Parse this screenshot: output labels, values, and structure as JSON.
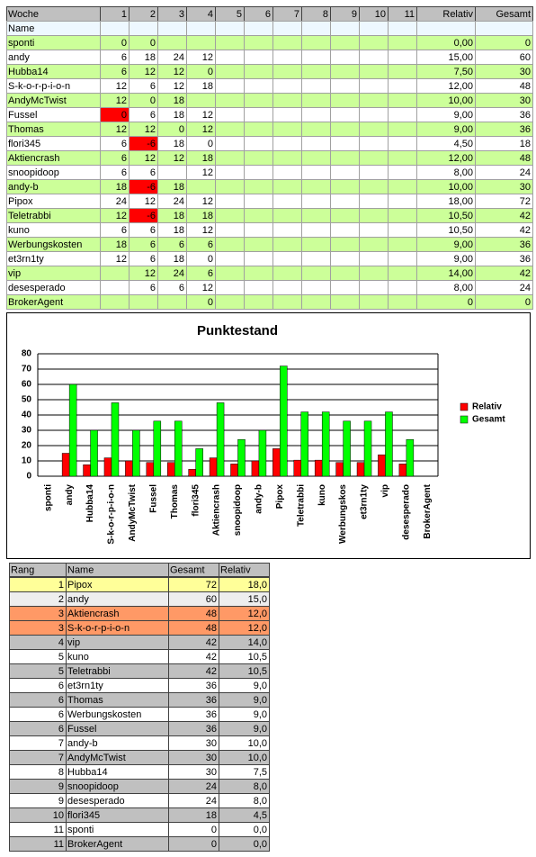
{
  "table": {
    "header": [
      "Woche",
      "1",
      "2",
      "3",
      "4",
      "5",
      "6",
      "7",
      "8",
      "9",
      "10",
      "11",
      "Relativ",
      "Gesamt"
    ],
    "subheader": "Name",
    "rows": [
      {
        "name": "sponti",
        "weeks": [
          0,
          0,
          null,
          null
        ],
        "relativ": "0,00",
        "gesamt": 0
      },
      {
        "name": "andy",
        "weeks": [
          6,
          18,
          24,
          12
        ],
        "relativ": "15,00",
        "gesamt": 60
      },
      {
        "name": "Hubba14",
        "weeks": [
          6,
          12,
          12,
          0
        ],
        "relativ": "7,50",
        "gesamt": 30
      },
      {
        "name": "S-k-o-r-p-i-o-n",
        "weeks": [
          12,
          6,
          12,
          18
        ],
        "relativ": "12,00",
        "gesamt": 48
      },
      {
        "name": "AndyMcTwist",
        "weeks": [
          12,
          0,
          18,
          null
        ],
        "relativ": "10,00",
        "gesamt": 30
      },
      {
        "name": "Fussel",
        "weeks": [
          0,
          6,
          18,
          12
        ],
        "relativ": "9,00",
        "gesamt": 36
      },
      {
        "name": "Thomas",
        "weeks": [
          12,
          12,
          0,
          12
        ],
        "relativ": "9,00",
        "gesamt": 36
      },
      {
        "name": "flori345",
        "weeks": [
          6,
          -6,
          18,
          0
        ],
        "relativ": "4,50",
        "gesamt": 18
      },
      {
        "name": "Aktiencrash",
        "weeks": [
          6,
          12,
          12,
          18
        ],
        "relativ": "12,00",
        "gesamt": 48
      },
      {
        "name": "snoopidoop",
        "weeks": [
          6,
          6,
          null,
          12
        ],
        "relativ": "8,00",
        "gesamt": 24
      },
      {
        "name": "andy-b",
        "weeks": [
          18,
          -6,
          18,
          null
        ],
        "relativ": "10,00",
        "gesamt": 30
      },
      {
        "name": "Pipox",
        "weeks": [
          24,
          12,
          24,
          12
        ],
        "relativ": "18,00",
        "gesamt": 72
      },
      {
        "name": "Teletrabbi",
        "weeks": [
          12,
          -6,
          18,
          18
        ],
        "relativ": "10,50",
        "gesamt": 42
      },
      {
        "name": "kuno",
        "weeks": [
          6,
          6,
          18,
          12
        ],
        "relativ": "10,50",
        "gesamt": 42
      },
      {
        "name": "Werbungskosten",
        "weeks": [
          18,
          6,
          6,
          6
        ],
        "relativ": "9,00",
        "gesamt": 36
      },
      {
        "name": "et3rn1ty",
        "weeks": [
          12,
          6,
          18,
          0
        ],
        "relativ": "9,00",
        "gesamt": 36
      },
      {
        "name": "vip",
        "weeks": [
          null,
          12,
          24,
          6
        ],
        "relativ": "14,00",
        "gesamt": 42
      },
      {
        "name": "desesperado",
        "weeks": [
          null,
          6,
          6,
          12
        ],
        "relativ": "8,00",
        "gesamt": 24
      },
      {
        "name": "BrokerAgent",
        "weeks": [
          null,
          null,
          null,
          0
        ],
        "relativ": "0",
        "gesamt": 0
      }
    ]
  },
  "chart_data": {
    "type": "bar",
    "title": "Punktestand",
    "categories": [
      "sponti",
      "andy",
      "Hubba14",
      "S-k-o-r-p-i-o-n",
      "AndyMcTwist",
      "Fussel",
      "Thomas",
      "flori345",
      "Aktiencrash",
      "snoopidoop",
      "andy-b",
      "Pipox",
      "Teletrabbi",
      "kuno",
      "Werbungskos",
      "et3rn1ty",
      "vip",
      "desesperado",
      "BrokerAgent"
    ],
    "series": [
      {
        "name": "Relativ",
        "color": "#ff0000",
        "values": [
          0,
          15,
          7.5,
          12,
          10,
          9,
          9,
          4.5,
          12,
          8,
          10,
          18,
          10.5,
          10.5,
          9,
          9,
          14,
          8,
          0
        ]
      },
      {
        "name": "Gesamt",
        "color": "#00ff00",
        "values": [
          0,
          60,
          30,
          48,
          30,
          36,
          36,
          18,
          48,
          24,
          30,
          72,
          42,
          42,
          36,
          36,
          42,
          24,
          0
        ]
      }
    ],
    "ylim": [
      0,
      80
    ],
    "yticks": [
      0,
      10,
      20,
      30,
      40,
      50,
      60,
      70,
      80
    ],
    "grid": true,
    "legend": "right"
  },
  "ranking": {
    "header": [
      "Rang",
      "Name",
      "Gesamt",
      "Relativ"
    ],
    "rows": [
      [
        1,
        "Pipox",
        72,
        "18,0"
      ],
      [
        2,
        "andy",
        60,
        "15,0"
      ],
      [
        3,
        "Aktiencrash",
        48,
        "12,0"
      ],
      [
        3,
        "S-k-o-r-p-i-o-n",
        48,
        "12,0"
      ],
      [
        4,
        "vip",
        42,
        "14,0"
      ],
      [
        5,
        "kuno",
        42,
        "10,5"
      ],
      [
        5,
        "Teletrabbi",
        42,
        "10,5"
      ],
      [
        6,
        "et3rn1ty",
        36,
        "9,0"
      ],
      [
        6,
        "Thomas",
        36,
        "9,0"
      ],
      [
        6,
        "Werbungskosten",
        36,
        "9,0"
      ],
      [
        6,
        "Fussel",
        36,
        "9,0"
      ],
      [
        7,
        "andy-b",
        30,
        "10,0"
      ],
      [
        7,
        "AndyMcTwist",
        30,
        "10,0"
      ],
      [
        8,
        "Hubba14",
        30,
        "7,5"
      ],
      [
        9,
        "snoopidoop",
        24,
        "8,0"
      ],
      [
        9,
        "desesperado",
        24,
        "8,0"
      ],
      [
        10,
        "flori345",
        18,
        "4,5"
      ],
      [
        11,
        "sponti",
        0,
        "0,0"
      ],
      [
        11,
        "BrokerAgent",
        0,
        "0,0"
      ]
    ]
  }
}
